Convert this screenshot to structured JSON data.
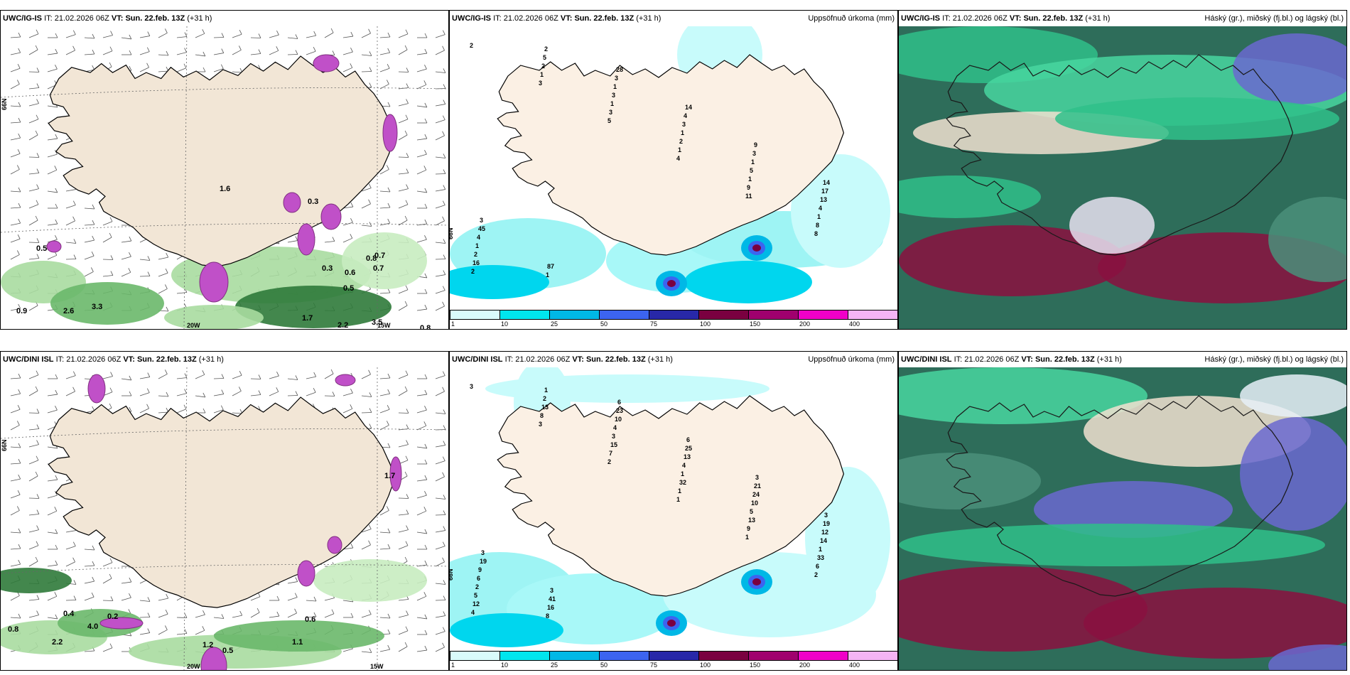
{
  "rows": [
    {
      "model": "UWC/IG-IS",
      "it_label": "IT:",
      "it_value": "21.02.2026 06Z",
      "vt_label": "VT:",
      "vt_value": "Sun. 22.feb. 13Z",
      "lead": "(+31 h)"
    },
    {
      "model": "UWC/DINI ISL",
      "it_label": "IT:",
      "it_value": "21.02.2026 06Z",
      "vt_label": "VT:",
      "vt_value": "Sun. 22.feb. 13Z",
      "lead": "(+31 h)"
    }
  ],
  "precip_title": "Uppsöfnuð úrkoma (mm)",
  "cloud_title": "Háský (gr.), miðský (fj.bl.) og lágský (bl.)",
  "colorbar": {
    "ticks": [
      "1",
      "10",
      "25",
      "50",
      "75",
      "100",
      "150",
      "200",
      "400"
    ],
    "colors": [
      "#d9fbfb",
      "#00e6ee",
      "#00b8e6",
      "#3c64f0",
      "#2828a8",
      "#7a0040",
      "#a0006e",
      "#f000c8",
      "#f5b4f5"
    ]
  },
  "coords": {
    "lat66": "66N",
    "lon20": "20W",
    "lon15": "15W"
  },
  "wind_labels_top": [
    "0.5",
    "0.9",
    "2.6",
    "3.3",
    "1.7",
    "2.2",
    "3.5",
    "0.8",
    "0.5",
    "0.3",
    "0.6",
    "0.7",
    "0.8",
    "0.7",
    "1.6",
    "0.3"
  ],
  "wind_labels_bottom": [
    "0.8",
    "2.2",
    "4.0",
    "1.2",
    "1.1",
    "0.6",
    "0.4",
    "0.2",
    "0.5",
    "1.7"
  ],
  "precip_labels_top": [
    "2",
    "3",
    "5",
    "4",
    "11",
    "8",
    "2",
    "1",
    "3",
    "1",
    "9",
    "8",
    "16",
    "2",
    "1",
    "2",
    "1",
    "1",
    "2",
    "5",
    "3",
    "1",
    "5",
    "4",
    "1",
    "2",
    "1",
    "3",
    "1",
    "13",
    "4",
    "1",
    "3",
    "4",
    "3",
    "17",
    "45",
    "87",
    "28",
    "14",
    "9",
    "14",
    "3"
  ],
  "precip_labels_bottom": [
    "3",
    "3",
    "2",
    "1",
    "1",
    "2",
    "4",
    "8",
    "7",
    "1",
    "9",
    "6",
    "12",
    "13",
    "15",
    "32",
    "13",
    "33",
    "5",
    "2",
    "3",
    "1",
    "5",
    "1",
    "2",
    "1",
    "4",
    "4",
    "10",
    "14",
    "6",
    "8",
    "10",
    "13",
    "24",
    "12",
    "9",
    "16",
    "23",
    "25",
    "21",
    "19",
    "19",
    "41",
    "6",
    "6",
    "3",
    "3",
    "3",
    "3"
  ]
}
